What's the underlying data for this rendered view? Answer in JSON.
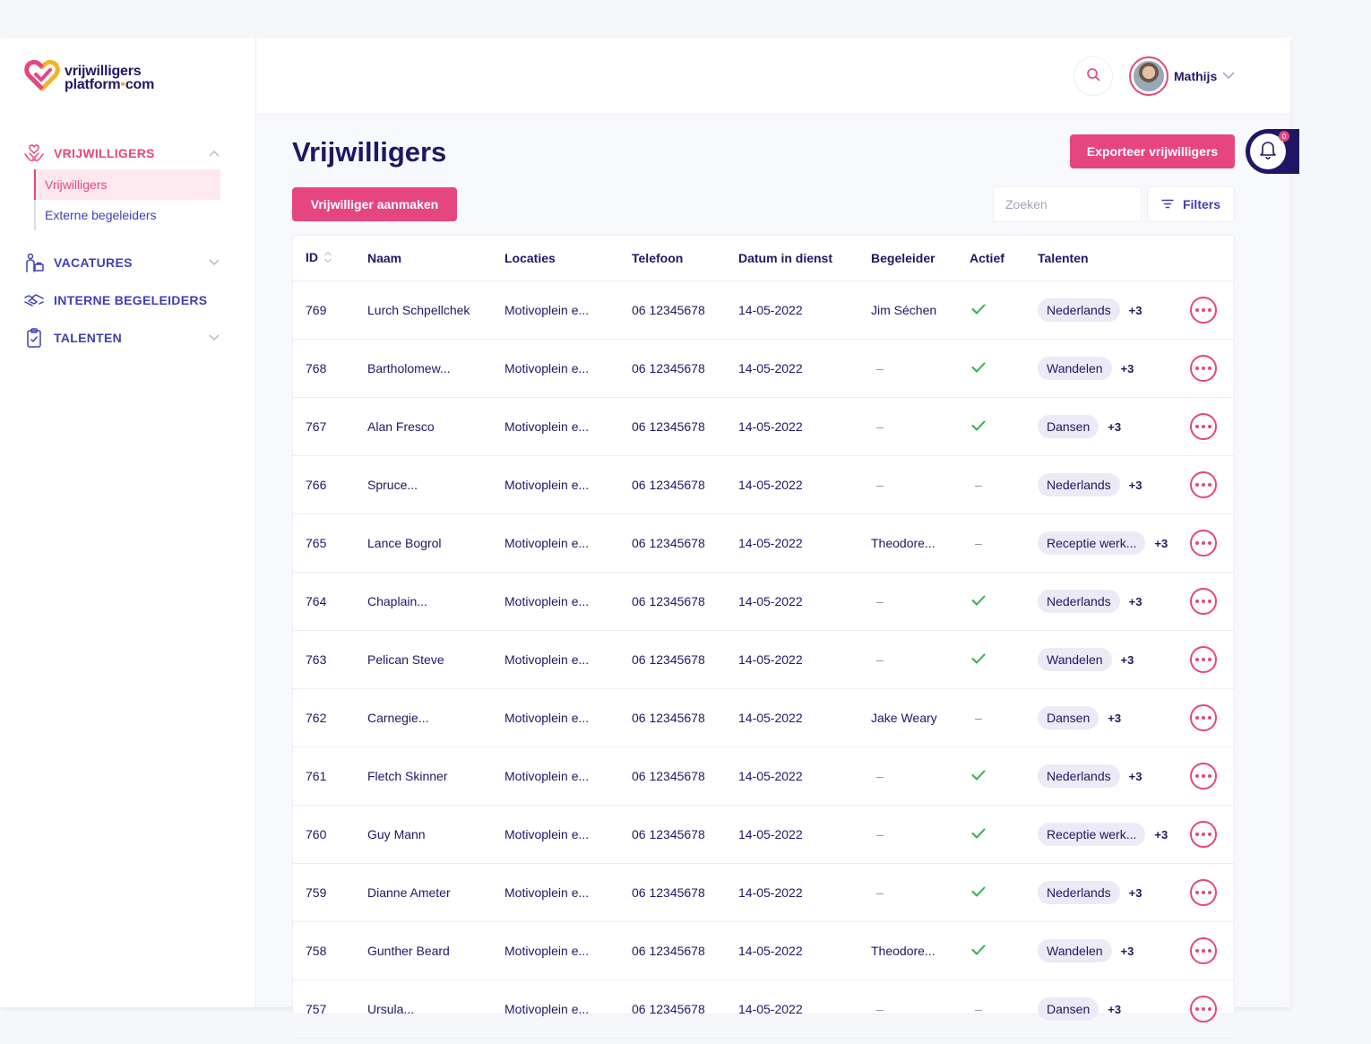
{
  "logo": {
    "line1": "vrijwilligers",
    "line2a": "platform",
    "dot": "•",
    "line2b": "com"
  },
  "colors": {
    "accent": "#e6467f",
    "primary": "#1f1766",
    "nav": "#3e3fb8",
    "success": "#2bb24c"
  },
  "sidebar": {
    "groups": [
      {
        "label": "VRIJWILLIGERS",
        "icon": "hands-heart-icon",
        "expanded": true,
        "items": [
          {
            "label": "Vrijwilligers",
            "active": true
          },
          {
            "label": "Externe begeleiders",
            "active": false
          }
        ]
      },
      {
        "label": "VACATURES",
        "icon": "person-briefcase-icon",
        "expanded": false
      },
      {
        "label": "INTERNE BEGELEIDERS",
        "icon": "handshake-icon",
        "expanded": false
      },
      {
        "label": "TALENTEN",
        "icon": "clipboard-check-icon",
        "expanded": false
      }
    ]
  },
  "header": {
    "user_name": "Mathijs",
    "notification_count": "0"
  },
  "main": {
    "title": "Vrijwilligers",
    "export_label": "Exporteer vrijwilligers",
    "create_label": "Vrijwilliger aanmaken",
    "search_placeholder": "Zoeken",
    "filters_label": "Filters"
  },
  "table": {
    "columns": [
      "ID",
      "Naam",
      "Locaties",
      "Telefoon",
      "Datum in dienst",
      "Begeleider",
      "Actief",
      "Talenten"
    ],
    "rows": [
      {
        "id": "769",
        "naam": "Lurch Schpellchek",
        "locatie": "Motivoplein e...",
        "telefoon": "06 12345678",
        "datum": "14-05-2022",
        "begeleider": "Jim Séchen",
        "actief": true,
        "talent": "Nederlands",
        "extra": "+3"
      },
      {
        "id": "768",
        "naam": "Bartholomew...",
        "locatie": "Motivoplein e...",
        "telefoon": "06 12345678",
        "datum": "14-05-2022",
        "begeleider": "–",
        "actief": true,
        "talent": "Wandelen",
        "extra": "+3"
      },
      {
        "id": "767",
        "naam": "Alan Fresco",
        "locatie": "Motivoplein e...",
        "telefoon": "06 12345678",
        "datum": "14-05-2022",
        "begeleider": "–",
        "actief": true,
        "talent": "Dansen",
        "extra": "+3"
      },
      {
        "id": "766",
        "naam": "Spruce...",
        "locatie": "Motivoplein e...",
        "telefoon": "06 12345678",
        "datum": "14-05-2022",
        "begeleider": "–",
        "actief": false,
        "talent": "Nederlands",
        "extra": "+3"
      },
      {
        "id": "765",
        "naam": "Lance Bogrol",
        "locatie": "Motivoplein e...",
        "telefoon": "06 12345678",
        "datum": "14-05-2022",
        "begeleider": "Theodore...",
        "actief": false,
        "talent": "Receptie werk...",
        "extra": "+3"
      },
      {
        "id": "764",
        "naam": "Chaplain...",
        "locatie": "Motivoplein e...",
        "telefoon": "06 12345678",
        "datum": "14-05-2022",
        "begeleider": "–",
        "actief": true,
        "talent": "Nederlands",
        "extra": "+3"
      },
      {
        "id": "763",
        "naam": "Pelican Steve",
        "locatie": "Motivoplein e...",
        "telefoon": "06 12345678",
        "datum": "14-05-2022",
        "begeleider": "–",
        "actief": true,
        "talent": "Wandelen",
        "extra": "+3"
      },
      {
        "id": "762",
        "naam": "Carnegie...",
        "locatie": "Motivoplein e...",
        "telefoon": "06 12345678",
        "datum": "14-05-2022",
        "begeleider": "Jake Weary",
        "actief": false,
        "talent": "Dansen",
        "extra": "+3"
      },
      {
        "id": "761",
        "naam": "Fletch Skinner",
        "locatie": "Motivoplein e...",
        "telefoon": "06 12345678",
        "datum": "14-05-2022",
        "begeleider": "–",
        "actief": true,
        "talent": "Nederlands",
        "extra": "+3"
      },
      {
        "id": "760",
        "naam": "Guy Mann",
        "locatie": "Motivoplein e...",
        "telefoon": "06 12345678",
        "datum": "14-05-2022",
        "begeleider": "–",
        "actief": true,
        "talent": "Receptie werk...",
        "extra": "+3"
      },
      {
        "id": "759",
        "naam": "Dianne Ameter",
        "locatie": "Motivoplein e...",
        "telefoon": "06 12345678",
        "datum": "14-05-2022",
        "begeleider": "–",
        "actief": true,
        "talent": "Nederlands",
        "extra": "+3"
      },
      {
        "id": "758",
        "naam": "Gunther Beard",
        "locatie": "Motivoplein e...",
        "telefoon": "06 12345678",
        "datum": "14-05-2022",
        "begeleider": "Theodore...",
        "actief": true,
        "talent": "Wandelen",
        "extra": "+3"
      },
      {
        "id": "757",
        "naam": "Ursula...",
        "locatie": "Motivoplein e...",
        "telefoon": "06 12345678",
        "datum": "14-05-2022",
        "begeleider": "–",
        "actief": false,
        "talent": "Dansen",
        "extra": "+3"
      }
    ]
  }
}
